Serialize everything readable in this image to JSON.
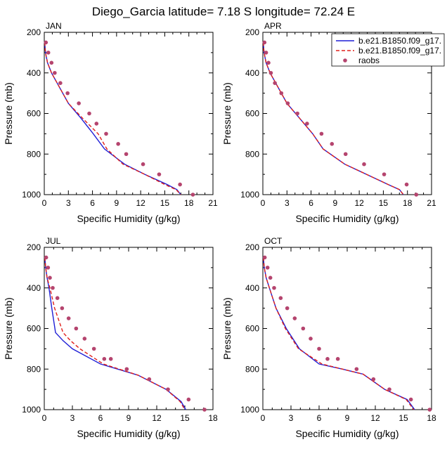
{
  "figure": {
    "title": "Diego_Garcia  latitude= 7.18 S longitude= 72.24 E"
  },
  "legend": {
    "placement": "top-right",
    "entries": [
      {
        "label": "b.e21.B1850.f09_g17.",
        "style": "solid-line",
        "color": "#1f1fd6"
      },
      {
        "label": "b.e21.B1850.f09_g17.",
        "style": "dashed-line",
        "color": "#e0201b"
      },
      {
        "label": "raobs",
        "style": "marker",
        "color": "#b5446e"
      }
    ]
  },
  "colors": {
    "series_solid": "#1f1fd6",
    "series_dashed": "#e0201b",
    "raobs": "#b5446e"
  },
  "chart_data": [
    {
      "type": "line",
      "panel": "JAN",
      "title": "JAN",
      "xlabel": "Specific Humidity (g/kg)",
      "ylabel": "Pressure (mb)",
      "xlim": [
        0,
        21
      ],
      "ylim": [
        1000,
        200
      ],
      "y_inverted": true,
      "xticks": [
        0,
        3,
        6,
        9,
        12,
        15,
        18,
        21
      ],
      "yticks": [
        200,
        400,
        600,
        800,
        1000
      ],
      "series": [
        {
          "name": "b.e21.B1850.f09_g17.",
          "style": "solid",
          "x": [
            0.05,
            0.15,
            0.4,
            0.9,
            1.6,
            3.0,
            4.6,
            6.1,
            7.5,
            10.0,
            12.5,
            15.3,
            16.5,
            17.0
          ],
          "y": [
            250,
            300,
            350,
            400,
            450,
            550,
            625,
            700,
            775,
            850,
            900,
            950,
            975,
            1000
          ]
        },
        {
          "name": "b.e21.B1850.f09_g17.",
          "style": "dashed",
          "x": [
            0.05,
            0.15,
            0.4,
            0.9,
            1.6,
            3.0,
            4.8,
            6.7,
            7.8,
            9.8,
            12.5,
            15.0,
            16.4,
            17.0
          ],
          "y": [
            250,
            300,
            350,
            400,
            450,
            550,
            625,
            700,
            775,
            850,
            900,
            950,
            975,
            1000
          ]
        },
        {
          "name": "raobs",
          "style": "markers",
          "x": [
            0.2,
            0.5,
            0.9,
            1.3,
            2.0,
            2.9,
            4.3,
            5.6,
            6.5,
            7.7,
            9.2,
            10.2,
            12.3,
            14.3,
            16.9,
            18.5
          ],
          "y": [
            250,
            300,
            350,
            400,
            450,
            500,
            550,
            600,
            650,
            700,
            750,
            800,
            850,
            900,
            950,
            1000
          ]
        }
      ]
    },
    {
      "type": "line",
      "panel": "APR",
      "title": "APR",
      "xlabel": "Specific Humidity (g/kg)",
      "ylabel": "Pressure (mb)",
      "xlim": [
        0,
        21
      ],
      "ylim": [
        1000,
        200
      ],
      "y_inverted": true,
      "xticks": [
        0,
        3,
        6,
        9,
        12,
        15,
        18,
        21
      ],
      "yticks": [
        200,
        400,
        600,
        800,
        1000
      ],
      "series": [
        {
          "name": "b.e21.B1850.f09_g17.",
          "style": "solid",
          "x": [
            0.05,
            0.15,
            0.4,
            0.9,
            1.6,
            3.0,
            4.6,
            6.2,
            7.5,
            10.2,
            12.9,
            15.6,
            17.0,
            17.5
          ],
          "y": [
            250,
            300,
            350,
            400,
            450,
            550,
            625,
            700,
            775,
            850,
            900,
            950,
            975,
            1000
          ]
        },
        {
          "name": "b.e21.B1850.f09_g17.",
          "style": "dashed",
          "x": [
            0.05,
            0.15,
            0.4,
            0.9,
            1.6,
            3.0,
            4.6,
            6.2,
            7.5,
            10.2,
            12.9,
            15.6,
            17.0,
            17.5
          ],
          "y": [
            250,
            300,
            350,
            400,
            450,
            550,
            625,
            700,
            775,
            850,
            900,
            950,
            975,
            1000
          ]
        },
        {
          "name": "raobs",
          "style": "markers",
          "x": [
            0.2,
            0.4,
            0.7,
            1.0,
            1.5,
            2.3,
            3.1,
            4.3,
            5.5,
            7.3,
            8.6,
            10.3,
            12.6,
            15.1,
            17.9,
            19.1
          ],
          "y": [
            250,
            300,
            350,
            400,
            450,
            500,
            550,
            600,
            650,
            700,
            750,
            800,
            850,
            900,
            950,
            1000
          ]
        }
      ]
    },
    {
      "type": "line",
      "panel": "JUL",
      "title": "JUL",
      "xlabel": "Specific Humidity (g/kg)",
      "ylabel": "Pressure (mb)",
      "xlim": [
        0,
        18
      ],
      "ylim": [
        1000,
        200
      ],
      "y_inverted": true,
      "xticks": [
        0,
        3,
        6,
        9,
        12,
        15,
        18
      ],
      "yticks": [
        200,
        400,
        600,
        800,
        1000
      ],
      "series": [
        {
          "name": "b.e21.B1850.f09_g17.",
          "style": "solid",
          "x": [
            0.05,
            0.15,
            0.3,
            0.5,
            0.8,
            1.2,
            2.0,
            3.0,
            6.0,
            10.0,
            13.0,
            14.6,
            15.1
          ],
          "y": [
            250,
            300,
            350,
            400,
            500,
            620,
            660,
            700,
            775,
            830,
            900,
            960,
            1000
          ]
        },
        {
          "name": "b.e21.B1850.f09_g17.",
          "style": "dashed",
          "x": [
            0.05,
            0.15,
            0.3,
            0.6,
            1.1,
            2.0,
            2.8,
            3.8,
            6.3,
            10.0,
            13.0,
            14.5,
            15.0
          ],
          "y": [
            250,
            300,
            350,
            400,
            500,
            620,
            660,
            700,
            775,
            830,
            900,
            960,
            1000
          ]
        },
        {
          "name": "raobs",
          "style": "markers",
          "x": [
            0.2,
            0.4,
            0.6,
            0.9,
            1.4,
            1.9,
            2.6,
            3.4,
            4.3,
            5.3,
            6.4,
            7.1,
            8.8,
            11.2,
            13.2,
            15.4,
            17.1
          ],
          "y": [
            250,
            300,
            350,
            400,
            450,
            500,
            550,
            600,
            650,
            700,
            750,
            750,
            800,
            850,
            900,
            950,
            1000
          ]
        }
      ]
    },
    {
      "type": "line",
      "panel": "OCT",
      "title": "OCT",
      "xlabel": "Specific Humidity (g/kg)",
      "ylabel": "Pressure (mb)",
      "xlim": [
        0,
        18
      ],
      "ylim": [
        1000,
        200
      ],
      "y_inverted": true,
      "xticks": [
        0,
        3,
        6,
        9,
        12,
        15,
        18
      ],
      "yticks": [
        200,
        400,
        600,
        800,
        1000
      ],
      "series": [
        {
          "name": "b.e21.B1850.f09_g17.",
          "style": "solid",
          "x": [
            0.05,
            0.15,
            0.35,
            0.7,
            1.4,
            2.5,
            3.9,
            6.0,
            8.5,
            10.7,
            13.0,
            15.4,
            16.2
          ],
          "y": [
            250,
            300,
            350,
            400,
            500,
            600,
            700,
            775,
            800,
            825,
            900,
            950,
            1000
          ]
        },
        {
          "name": "b.e21.B1850.f09_g17.",
          "style": "dashed",
          "x": [
            0.05,
            0.15,
            0.35,
            0.7,
            1.4,
            2.4,
            3.8,
            6.3,
            8.5,
            10.7,
            13.0,
            15.3,
            16.1
          ],
          "y": [
            250,
            300,
            350,
            400,
            500,
            600,
            700,
            775,
            800,
            825,
            900,
            950,
            1000
          ]
        },
        {
          "name": "raobs",
          "style": "markers",
          "x": [
            0.2,
            0.5,
            0.8,
            1.2,
            1.9,
            2.6,
            3.4,
            4.3,
            5.1,
            6.0,
            6.9,
            8.0,
            10.0,
            11.8,
            13.5,
            15.8,
            17.8
          ],
          "y": [
            250,
            300,
            350,
            400,
            450,
            500,
            550,
            600,
            650,
            700,
            750,
            750,
            800,
            850,
            900,
            950,
            1000
          ]
        }
      ]
    }
  ]
}
